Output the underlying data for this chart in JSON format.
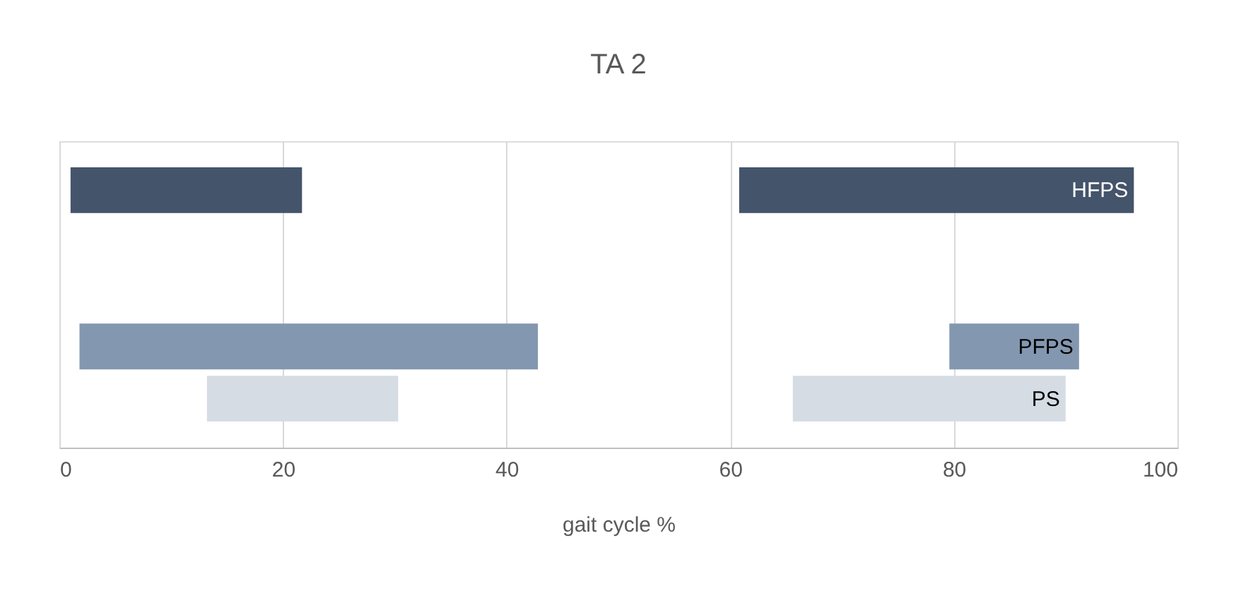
{
  "chart_data": {
    "type": "bar",
    "orientation": "horizontal",
    "title": "TA 2",
    "xlabel": "gait cycle %",
    "categories": [
      "HFPS",
      null,
      null,
      "PFPS",
      "PS"
    ],
    "series": [
      {
        "colors": [
          "#44546a",
          null,
          null,
          "#8497b0",
          "#d6dce4"
        ],
        "base": [
          1.0,
          null,
          null,
          1.8,
          13.2
        ],
        "values": [
          20.7,
          null,
          null,
          41.0,
          17.1
        ]
      },
      {
        "colors": [
          "#44546a",
          null,
          null,
          "#8497b0",
          "#d6dce4"
        ],
        "base": [
          60.8,
          null,
          null,
          79.6,
          65.6
        ],
        "values": [
          35.3,
          null,
          null,
          11.6,
          24.4
        ]
      }
    ],
    "xlim": [
      0,
      100
    ],
    "xticks": [
      0,
      20,
      40,
      60,
      80,
      100
    ],
    "grid": "x"
  }
}
